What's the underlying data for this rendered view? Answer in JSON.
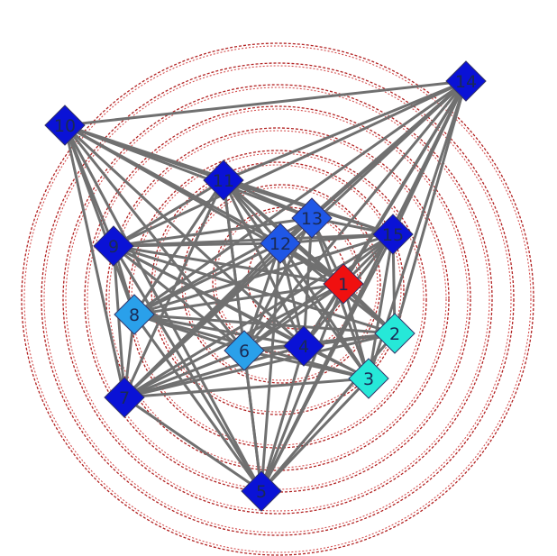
{
  "graph": {
    "colors": {
      "node_dark": "#0a12d6",
      "node_mid": "#1f57e6",
      "node_light": "#2aa0ea",
      "node_cyan": "#26e8d8",
      "node_red": "#f01010",
      "edge": "#707070",
      "ring": "#b22222"
    },
    "nodes": [
      {
        "id": "1",
        "color": "#f01010"
      },
      {
        "id": "2",
        "color": "#26e8d8"
      },
      {
        "id": "3",
        "color": "#26e8d8"
      },
      {
        "id": "4",
        "color": "#0a12d6"
      },
      {
        "id": "5",
        "color": "#0a12d6"
      },
      {
        "id": "6",
        "color": "#2aa0ea"
      },
      {
        "id": "7",
        "color": "#0a12d6"
      },
      {
        "id": "8",
        "color": "#2aa0ea"
      },
      {
        "id": "9",
        "color": "#0a12d6"
      },
      {
        "id": "10",
        "color": "#0a12d6"
      },
      {
        "id": "11",
        "color": "#0a12d6"
      },
      {
        "id": "12",
        "color": "#1f57e6"
      },
      {
        "id": "13",
        "color": "#1f57e6"
      },
      {
        "id": "14",
        "color": "#0a12d6"
      },
      {
        "id": "15",
        "color": "#0a12d6"
      }
    ],
    "edges": [
      [
        "10",
        "14"
      ],
      [
        "10",
        "11"
      ],
      [
        "10",
        "12"
      ],
      [
        "10",
        "13"
      ],
      [
        "10",
        "15"
      ],
      [
        "10",
        "1"
      ],
      [
        "10",
        "4"
      ],
      [
        "10",
        "5"
      ],
      [
        "10",
        "6"
      ],
      [
        "10",
        "7"
      ],
      [
        "10",
        "8"
      ],
      [
        "10",
        "9"
      ],
      [
        "14",
        "11"
      ],
      [
        "14",
        "12"
      ],
      [
        "14",
        "13"
      ],
      [
        "14",
        "15"
      ],
      [
        "14",
        "1"
      ],
      [
        "14",
        "2"
      ],
      [
        "14",
        "3"
      ],
      [
        "14",
        "4"
      ],
      [
        "14",
        "5"
      ],
      [
        "14",
        "6"
      ],
      [
        "14",
        "7"
      ],
      [
        "14",
        "8"
      ],
      [
        "14",
        "9"
      ],
      [
        "5",
        "7"
      ],
      [
        "5",
        "8"
      ],
      [
        "5",
        "9"
      ],
      [
        "5",
        "11"
      ],
      [
        "5",
        "12"
      ],
      [
        "5",
        "4"
      ],
      [
        "5",
        "6"
      ],
      [
        "5",
        "3"
      ],
      [
        "5",
        "2"
      ],
      [
        "5",
        "1"
      ],
      [
        "5",
        "15"
      ],
      [
        "7",
        "11"
      ],
      [
        "7",
        "12"
      ],
      [
        "7",
        "13"
      ],
      [
        "7",
        "15"
      ],
      [
        "7",
        "1"
      ],
      [
        "7",
        "2"
      ],
      [
        "7",
        "3"
      ],
      [
        "7",
        "4"
      ],
      [
        "7",
        "6"
      ],
      [
        "7",
        "8"
      ],
      [
        "7",
        "9"
      ],
      [
        "9",
        "11"
      ],
      [
        "9",
        "12"
      ],
      [
        "9",
        "13"
      ],
      [
        "9",
        "15"
      ],
      [
        "9",
        "1"
      ],
      [
        "9",
        "2"
      ],
      [
        "9",
        "3"
      ],
      [
        "9",
        "4"
      ],
      [
        "9",
        "6"
      ],
      [
        "9",
        "8"
      ],
      [
        "8",
        "11"
      ],
      [
        "8",
        "12"
      ],
      [
        "8",
        "13"
      ],
      [
        "8",
        "15"
      ],
      [
        "8",
        "1"
      ],
      [
        "8",
        "2"
      ],
      [
        "8",
        "3"
      ],
      [
        "8",
        "4"
      ],
      [
        "8",
        "6"
      ],
      [
        "11",
        "12"
      ],
      [
        "11",
        "13"
      ],
      [
        "11",
        "15"
      ],
      [
        "11",
        "1"
      ],
      [
        "11",
        "2"
      ],
      [
        "11",
        "3"
      ],
      [
        "11",
        "4"
      ],
      [
        "11",
        "6"
      ],
      [
        "12",
        "13"
      ],
      [
        "12",
        "15"
      ],
      [
        "12",
        "1"
      ],
      [
        "12",
        "2"
      ],
      [
        "12",
        "3"
      ],
      [
        "12",
        "4"
      ],
      [
        "12",
        "6"
      ],
      [
        "13",
        "15"
      ],
      [
        "13",
        "1"
      ],
      [
        "13",
        "4"
      ],
      [
        "13",
        "6"
      ],
      [
        "13",
        "3"
      ],
      [
        "15",
        "1"
      ],
      [
        "15",
        "2"
      ],
      [
        "15",
        "3"
      ],
      [
        "15",
        "4"
      ],
      [
        "15",
        "6"
      ],
      [
        "1",
        "2"
      ],
      [
        "1",
        "3"
      ],
      [
        "1",
        "4"
      ],
      [
        "1",
        "6"
      ],
      [
        "4",
        "6"
      ],
      [
        "4",
        "2"
      ],
      [
        "4",
        "3"
      ],
      [
        "6",
        "3"
      ],
      [
        "6",
        "2"
      ]
    ]
  }
}
